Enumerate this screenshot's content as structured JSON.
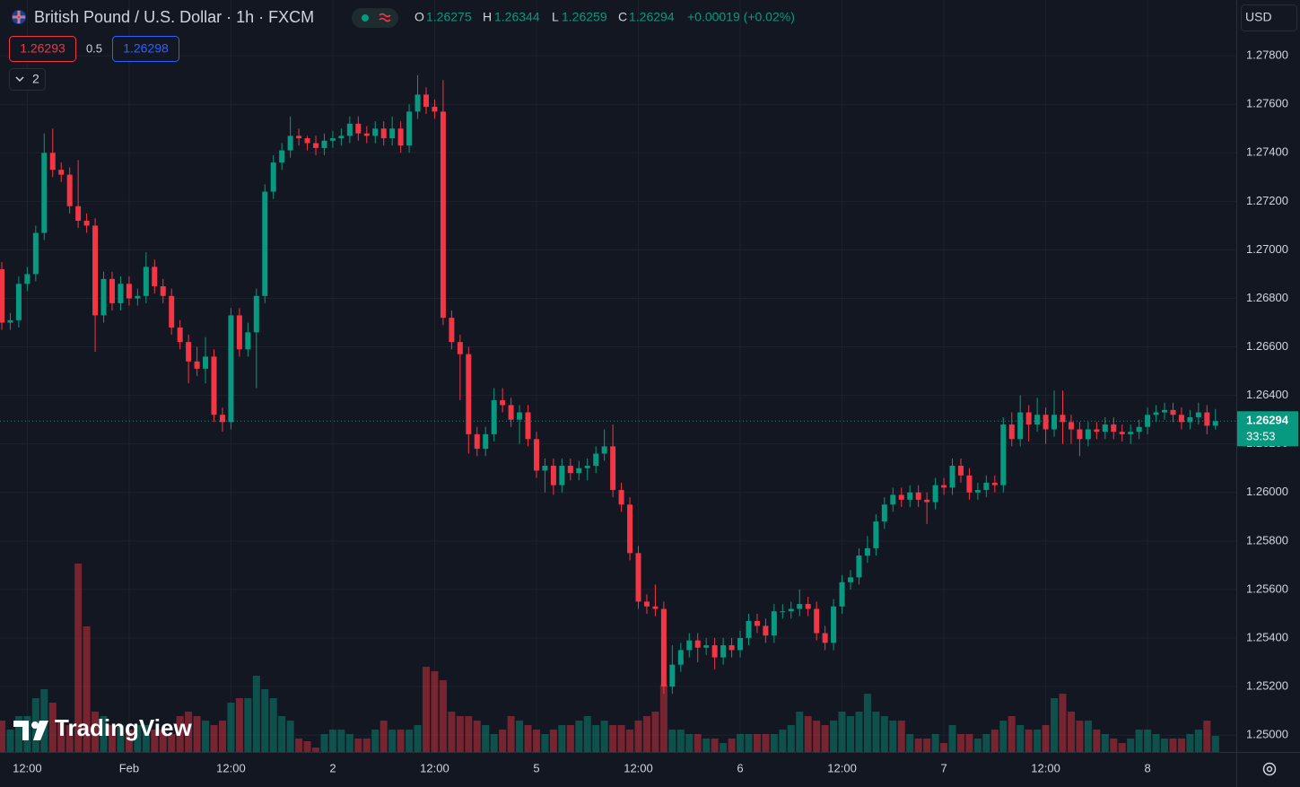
{
  "header": {
    "title": "British Pound / U.S. Dollar · 1h · FXCM",
    "o_label": "O",
    "h_label": "H",
    "l_label": "L",
    "c_label": "C",
    "change": "+0.00019 (+0.02%)",
    "sell": 1.26293,
    "spread": 0.5,
    "buy": 1.26298,
    "indicators": "2",
    "currency": "USD",
    "countdown": "33:53",
    "logo": "TradingView"
  },
  "chart_data": {
    "type": "candlestick",
    "up_color": "#089981",
    "down_color": "#f23645",
    "categories": [
      null,
      null,
      null,
      "12:00",
      null,
      null,
      null,
      null,
      null,
      null,
      null,
      null,
      null,
      null,
      null,
      "Feb",
      null,
      null,
      null,
      null,
      null,
      null,
      null,
      null,
      null,
      null,
      null,
      "12:00",
      null,
      null,
      null,
      null,
      null,
      null,
      null,
      null,
      null,
      null,
      null,
      "2",
      null,
      null,
      null,
      null,
      null,
      null,
      null,
      null,
      null,
      null,
      null,
      "12:00",
      null,
      null,
      null,
      null,
      null,
      null,
      null,
      null,
      null,
      null,
      null,
      "5",
      null,
      null,
      null,
      null,
      null,
      null,
      null,
      null,
      null,
      null,
      null,
      "12:00",
      null,
      null,
      null,
      null,
      null,
      null,
      null,
      null,
      null,
      null,
      null,
      "6",
      null,
      null,
      null,
      null,
      null,
      null,
      null,
      null,
      null,
      null,
      null,
      "12:00",
      null,
      null,
      null,
      null,
      null,
      null,
      null,
      null,
      null,
      null,
      null,
      "7",
      null,
      null,
      null,
      null,
      null,
      null,
      null,
      null,
      null,
      null,
      null,
      "12:00",
      null,
      null,
      null,
      null,
      null,
      null,
      null,
      null,
      null,
      null,
      null,
      "8",
      null,
      null,
      null,
      null,
      null,
      null,
      null,
      null
    ],
    "open": [
      1.2692,
      1.267,
      1.2671,
      1.2686,
      1.269,
      1.2707,
      1.274,
      1.2733,
      1.2731,
      1.2718,
      1.2712,
      1.271,
      1.2673,
      1.2688,
      1.2678,
      1.2686,
      1.268,
      1.2681,
      1.2693,
      1.2685,
      1.2681,
      1.2668,
      1.2662,
      1.2654,
      1.2651,
      1.2656,
      1.2632,
      1.2629,
      1.2673,
      1.2659,
      1.2666,
      1.2681,
      1.2724,
      1.2736,
      1.2741,
      1.2747,
      1.2746,
      1.2744,
      1.2742,
      1.2745,
      1.2746,
      1.2747,
      1.2752,
      1.2748,
      1.2747,
      1.275,
      1.2746,
      1.275,
      1.2743,
      1.2757,
      1.2764,
      1.2759,
      1.2757,
      1.2672,
      1.2662,
      1.2657,
      1.2624,
      1.2618,
      1.2624,
      1.2638,
      1.2636,
      1.263,
      1.2633,
      1.2622,
      1.2609,
      1.2611,
      1.2603,
      1.2611,
      1.2608,
      1.261,
      1.2611,
      1.2616,
      1.2619,
      1.2601,
      1.2595,
      1.2575,
      1.2555,
      1.2553,
      1.2552,
      1.252,
      1.2529,
      1.2535,
      1.2539,
      1.2536,
      1.2537,
      1.2532,
      1.2537,
      1.2535,
      1.254,
      1.2547,
      1.2545,
      1.2541,
      1.2551,
      1.2551,
      1.2552,
      1.2554,
      1.2552,
      1.2542,
      1.2538,
      1.2553,
      1.2563,
      1.2565,
      1.2574,
      1.2577,
      1.2588,
      1.2595,
      1.2599,
      1.2597,
      1.26,
      1.2597,
      1.2596,
      1.2603,
      1.2602,
      1.2611,
      1.2607,
      1.26,
      1.2601,
      1.2604,
      1.2603,
      1.2628,
      1.2622,
      1.2633,
      1.2628,
      1.2632,
      1.2626,
      1.2632,
      1.2629,
      1.2626,
      1.2622,
      1.2626,
      1.2625,
      1.2628,
      1.2625,
      1.2624,
      1.2625,
      1.2627,
      1.2632,
      1.2633,
      1.2634,
      1.2632,
      1.2629,
      1.2631,
      1.2633,
      1.26275
    ],
    "high": [
      1.2695,
      1.2674,
      1.2689,
      1.2693,
      1.271,
      1.2748,
      1.275,
      1.2736,
      1.2734,
      1.2737,
      1.2715,
      1.2713,
      1.2691,
      1.2691,
      1.2689,
      1.2689,
      1.2684,
      1.2699,
      1.2696,
      1.2688,
      1.2684,
      1.2671,
      1.2665,
      1.266,
      1.2664,
      1.2659,
      1.2635,
      1.2676,
      1.2676,
      1.267,
      1.2684,
      1.2727,
      1.2739,
      1.2744,
      1.2755,
      1.275,
      1.2747,
      1.2747,
      1.2748,
      1.2749,
      1.275,
      1.2755,
      1.2755,
      1.2751,
      1.2753,
      1.2753,
      1.2755,
      1.2753,
      1.276,
      1.2772,
      1.2767,
      1.2762,
      1.277,
      1.2675,
      1.2665,
      1.266,
      1.2627,
      1.2627,
      1.2643,
      1.2643,
      1.2639,
      1.2636,
      1.2636,
      1.2625,
      1.2614,
      1.2614,
      1.2614,
      1.2614,
      1.2613,
      1.2614,
      1.2619,
      1.2626,
      1.2628,
      1.2604,
      1.2598,
      1.2578,
      1.2558,
      1.2562,
      1.2555,
      1.2537,
      1.2538,
      1.2542,
      1.2542,
      1.254,
      1.254,
      1.254,
      1.254,
      1.2543,
      1.255,
      1.255,
      1.2548,
      1.2554,
      1.2554,
      1.2555,
      1.256,
      1.2557,
      1.2555,
      1.2545,
      1.2556,
      1.2566,
      1.2568,
      1.2577,
      1.2582,
      1.2591,
      1.2598,
      1.2602,
      1.2602,
      1.2603,
      1.2603,
      1.26,
      1.2606,
      1.2606,
      1.2614,
      1.2614,
      1.261,
      1.2604,
      1.2607,
      1.2607,
      1.2631,
      1.2633,
      1.264,
      1.2636,
      1.2639,
      1.2635,
      1.2642,
      1.2642,
      1.2632,
      1.2629,
      1.2629,
      1.2629,
      1.2631,
      1.2631,
      1.2628,
      1.2628,
      1.263,
      1.2635,
      1.2636,
      1.2637,
      1.2637,
      1.2635,
      1.2634,
      1.2637,
      1.2636,
      1.26344
    ],
    "low": [
      1.2667,
      1.2667,
      1.2668,
      1.2683,
      1.2687,
      1.2704,
      1.273,
      1.2728,
      1.2715,
      1.2709,
      1.2707,
      1.2658,
      1.267,
      1.2675,
      1.2675,
      1.2677,
      1.2677,
      1.2678,
      1.2682,
      1.2678,
      1.2665,
      1.2659,
      1.2645,
      1.2648,
      1.2645,
      1.2629,
      1.2625,
      1.2626,
      1.2656,
      1.2656,
      1.2643,
      1.2678,
      1.2721,
      1.2733,
      1.2738,
      1.2743,
      1.2741,
      1.2739,
      1.2739,
      1.2742,
      1.2743,
      1.2744,
      1.2745,
      1.2744,
      1.2744,
      1.2743,
      1.2743,
      1.274,
      1.274,
      1.2754,
      1.2756,
      1.2754,
      1.2669,
      1.2659,
      1.2638,
      1.2616,
      1.2615,
      1.2615,
      1.2621,
      1.2633,
      1.2627,
      1.262,
      1.2619,
      1.2606,
      1.26,
      1.2599,
      1.26,
      1.2605,
      1.2605,
      1.2605,
      1.2608,
      1.2613,
      1.2598,
      1.2592,
      1.2572,
      1.2552,
      1.255,
      1.2549,
      1.2517,
      1.2517,
      1.2526,
      1.2532,
      1.253,
      1.2533,
      1.2527,
      1.2529,
      1.2532,
      1.2532,
      1.2537,
      1.2542,
      1.2538,
      1.2538,
      1.2548,
      1.2548,
      1.2549,
      1.2549,
      1.2539,
      1.2535,
      1.2535,
      1.255,
      1.256,
      1.2562,
      1.2571,
      1.2574,
      1.2585,
      1.2592,
      1.2594,
      1.2594,
      1.2594,
      1.2587,
      1.2593,
      1.2599,
      1.2599,
      1.2604,
      1.2597,
      1.2597,
      1.2598,
      1.26,
      1.26,
      1.2619,
      1.2619,
      1.2621,
      1.2625,
      1.262,
      1.2623,
      1.262,
      1.262,
      1.2615,
      1.2619,
      1.2622,
      1.2622,
      1.2622,
      1.2621,
      1.262,
      1.2622,
      1.2624,
      1.2629,
      1.263,
      1.2629,
      1.2626,
      1.2626,
      1.2628,
      1.2624,
      1.26259
    ],
    "close": [
      1.267,
      1.2671,
      1.2686,
      1.269,
      1.2707,
      1.274,
      1.2733,
      1.2731,
      1.2718,
      1.2712,
      1.271,
      1.2673,
      1.2688,
      1.2678,
      1.2686,
      1.268,
      1.2681,
      1.2693,
      1.2685,
      1.2681,
      1.2668,
      1.2662,
      1.2654,
      1.2651,
      1.2656,
      1.2632,
      1.2629,
      1.2673,
      1.2659,
      1.2666,
      1.2681,
      1.2724,
      1.2736,
      1.2741,
      1.2747,
      1.2746,
      1.2744,
      1.2742,
      1.2745,
      1.2746,
      1.2747,
      1.2752,
      1.2748,
      1.2747,
      1.275,
      1.2746,
      1.275,
      1.2743,
      1.2757,
      1.2764,
      1.2759,
      1.2757,
      1.2672,
      1.2662,
      1.2657,
      1.2624,
      1.2618,
      1.2624,
      1.2638,
      1.2636,
      1.263,
      1.2633,
      1.2622,
      1.2609,
      1.2611,
      1.2603,
      1.2611,
      1.2608,
      1.261,
      1.2611,
      1.2616,
      1.2619,
      1.2601,
      1.2595,
      1.2575,
      1.2555,
      1.2553,
      1.2552,
      1.252,
      1.2529,
      1.2535,
      1.2539,
      1.2536,
      1.2537,
      1.2532,
      1.2537,
      1.2535,
      1.254,
      1.2547,
      1.2545,
      1.2541,
      1.2551,
      1.2551,
      1.2552,
      1.2554,
      1.2552,
      1.2542,
      1.2538,
      1.2553,
      1.2563,
      1.2565,
      1.2574,
      1.2577,
      1.2588,
      1.2595,
      1.2599,
      1.2597,
      1.26,
      1.2597,
      1.2596,
      1.2603,
      1.2602,
      1.2611,
      1.2607,
      1.26,
      1.2601,
      1.2604,
      1.2603,
      1.2628,
      1.2622,
      1.2633,
      1.2628,
      1.2632,
      1.2626,
      1.2632,
      1.2629,
      1.2626,
      1.2622,
      1.2626,
      1.2625,
      1.2628,
      1.2625,
      1.2624,
      1.2625,
      1.2627,
      1.2632,
      1.2633,
      1.2634,
      1.2632,
      1.2629,
      1.2631,
      1.2633,
      1.26275,
      1.26294
    ],
    "volume": [
      35,
      25,
      40,
      40,
      60,
      70,
      55,
      35,
      30,
      210,
      140,
      45,
      40,
      30,
      30,
      25,
      30,
      30,
      25,
      25,
      20,
      40,
      45,
      40,
      35,
      30,
      35,
      55,
      60,
      60,
      85,
      70,
      60,
      40,
      35,
      15,
      12,
      5,
      20,
      25,
      25,
      20,
      15,
      15,
      25,
      35,
      25,
      25,
      25,
      30,
      95,
      90,
      80,
      45,
      40,
      40,
      35,
      30,
      20,
      25,
      40,
      35,
      30,
      25,
      20,
      25,
      30,
      30,
      35,
      40,
      30,
      35,
      30,
      30,
      25,
      35,
      40,
      45,
      75,
      25,
      25,
      20,
      20,
      15,
      15,
      10,
      15,
      20,
      20,
      20,
      20,
      20,
      25,
      30,
      45,
      40,
      35,
      30,
      35,
      45,
      40,
      45,
      65,
      45,
      40,
      35,
      35,
      20,
      15,
      15,
      20,
      10,
      30,
      20,
      20,
      15,
      20,
      25,
      35,
      40,
      30,
      25,
      25,
      30,
      60,
      65,
      45,
      35,
      35,
      25,
      20,
      15,
      10,
      15,
      25,
      25,
      20,
      15,
      15,
      15,
      20,
      25,
      35,
      18
    ],
    "ylim": [
      1.2493,
      1.2803
    ],
    "yticks": [
      {
        "value": 1.25,
        "label": "1.25000"
      },
      {
        "value": 1.252,
        "label": "1.25200"
      },
      {
        "value": 1.254,
        "label": "1.25400"
      },
      {
        "value": 1.256,
        "label": "1.25600"
      },
      {
        "value": 1.258,
        "label": "1.25800"
      },
      {
        "value": 1.26,
        "label": "1.26000"
      },
      {
        "value": 1.262,
        "label": "1.26200"
      },
      {
        "value": 1.264,
        "label": "1.26400"
      },
      {
        "value": 1.266,
        "label": "1.26600"
      },
      {
        "value": 1.268,
        "label": "1.26800"
      },
      {
        "value": 1.27,
        "label": "1.27000"
      },
      {
        "value": 1.272,
        "label": "1.27200"
      },
      {
        "value": 1.274,
        "label": "1.27400"
      },
      {
        "value": 1.276,
        "label": "1.27600"
      },
      {
        "value": 1.278,
        "label": "1.27800"
      }
    ],
    "grid": true
  }
}
